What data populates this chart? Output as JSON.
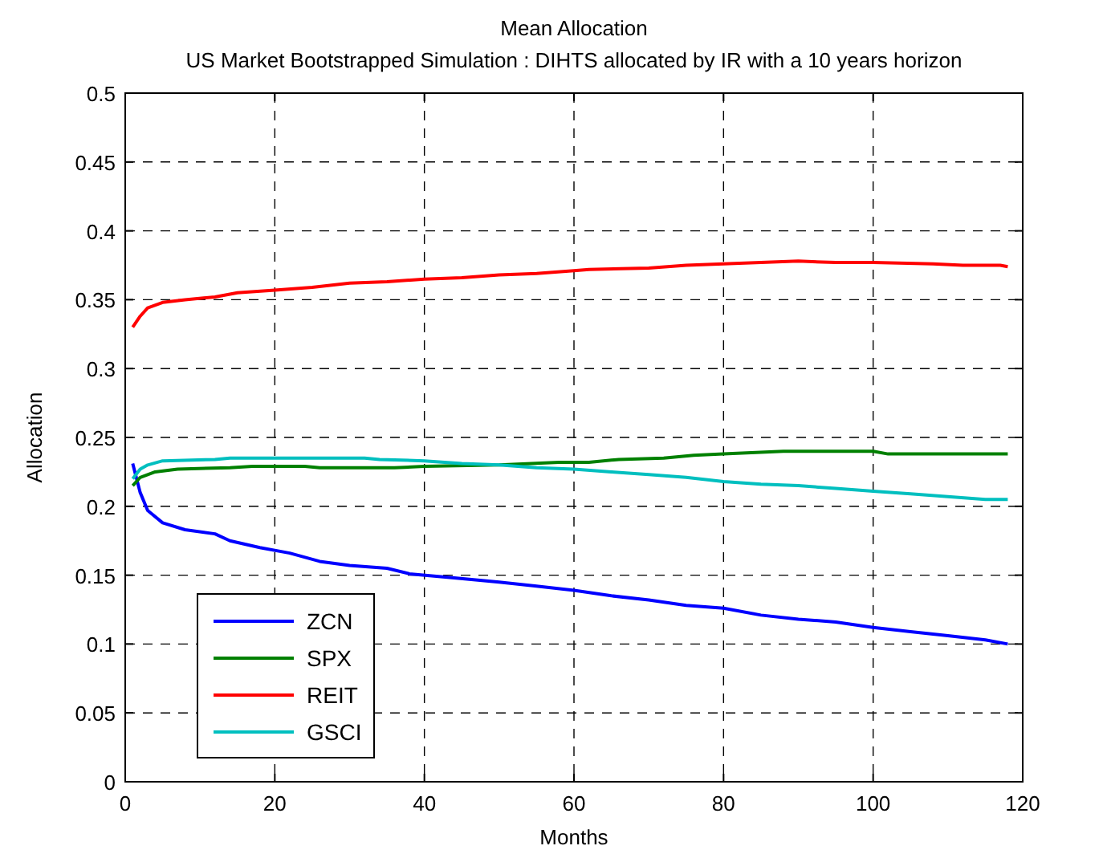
{
  "chart_data": {
    "type": "line",
    "title": "Mean Allocation",
    "subtitle": "US Market Bootstrapped Simulation : DIHTS  allocated by IR with a 10 years horizon",
    "xlabel": "Months",
    "ylabel": "Allocation",
    "xlim": [
      0,
      120
    ],
    "xticks": [
      0,
      20,
      40,
      60,
      80,
      100,
      120
    ],
    "ylim": [
      0,
      0.5
    ],
    "yticks": [
      0,
      0.05,
      0.1,
      0.15,
      0.2,
      0.25,
      0.3,
      0.35,
      0.4,
      0.45,
      0.5
    ],
    "grid": true,
    "legend": "bottom left",
    "line_style": "solid",
    "series": [
      {
        "name": "ZCN",
        "color": "#0000ff",
        "x": [
          1,
          2,
          3,
          5,
          8,
          12,
          14,
          18,
          22,
          26,
          30,
          35,
          38,
          44,
          50,
          55,
          60,
          65,
          70,
          75,
          80,
          85,
          90,
          95,
          100,
          105,
          110,
          115,
          118
        ],
        "values": [
          0.231,
          0.21,
          0.197,
          0.188,
          0.183,
          0.18,
          0.175,
          0.17,
          0.166,
          0.16,
          0.157,
          0.155,
          0.151,
          0.148,
          0.145,
          0.142,
          0.139,
          0.135,
          0.132,
          0.128,
          0.126,
          0.121,
          0.118,
          0.116,
          0.112,
          0.109,
          0.106,
          0.103,
          0.1
        ]
      },
      {
        "name": "SPX",
        "color": "#008000",
        "x": [
          1,
          2,
          4,
          7,
          14,
          17,
          24,
          26,
          36,
          40,
          50,
          58,
          62,
          66,
          72,
          76,
          80,
          88,
          100,
          102,
          118
        ],
        "values": [
          0.215,
          0.221,
          0.225,
          0.227,
          0.228,
          0.229,
          0.229,
          0.228,
          0.228,
          0.229,
          0.23,
          0.232,
          0.232,
          0.234,
          0.235,
          0.237,
          0.238,
          0.24,
          0.24,
          0.238,
          0.238
        ]
      },
      {
        "name": "REIT",
        "color": "#ff0000",
        "x": [
          1,
          2,
          3,
          5,
          8,
          12,
          15,
          20,
          25,
          30,
          35,
          40,
          45,
          50,
          55,
          60,
          62,
          70,
          75,
          80,
          90,
          95,
          100,
          108,
          112,
          117,
          118
        ],
        "values": [
          0.33,
          0.338,
          0.344,
          0.348,
          0.35,
          0.352,
          0.355,
          0.357,
          0.359,
          0.362,
          0.363,
          0.365,
          0.366,
          0.368,
          0.369,
          0.371,
          0.372,
          0.373,
          0.375,
          0.376,
          0.378,
          0.377,
          0.377,
          0.376,
          0.375,
          0.375,
          0.374
        ]
      },
      {
        "name": "GSCI",
        "color": "#00bfbf",
        "x": [
          1,
          2,
          3,
          5,
          12,
          14,
          32,
          34,
          40,
          45,
          50,
          55,
          60,
          65,
          70,
          75,
          80,
          85,
          90,
          95,
          100,
          105,
          110,
          115,
          118
        ],
        "values": [
          0.22,
          0.227,
          0.23,
          0.233,
          0.234,
          0.235,
          0.235,
          0.234,
          0.233,
          0.231,
          0.23,
          0.228,
          0.227,
          0.225,
          0.223,
          0.221,
          0.218,
          0.216,
          0.215,
          0.213,
          0.211,
          0.209,
          0.207,
          0.205,
          0.205
        ]
      }
    ]
  }
}
